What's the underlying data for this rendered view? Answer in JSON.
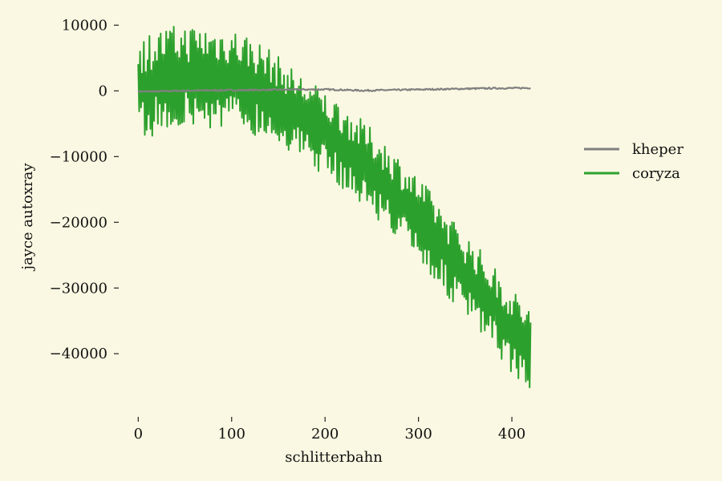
{
  "chart_data": {
    "type": "line",
    "title": "",
    "xlabel": "schlitterbahn",
    "ylabel": "jayce autoxray",
    "xlim": [
      -8,
      430
    ],
    "ylim": [
      -49000,
      12000
    ],
    "x_ticks": [
      0,
      100,
      200,
      300,
      400
    ],
    "x_tick_labels": [
      "0",
      "100",
      "200",
      "300",
      "400"
    ],
    "y_ticks": [
      10000,
      0,
      -10000,
      -20000,
      -30000,
      -40000
    ],
    "y_tick_labels": [
      "10000",
      "0",
      "−10000",
      "−20000",
      "−30000",
      "−40000"
    ],
    "grid": false,
    "legend_position": "right",
    "background": "#faf8e2",
    "series": [
      {
        "name": "kheper",
        "color": "#808080",
        "x": [
          0,
          20,
          40,
          60,
          80,
          100,
          120,
          140,
          160,
          180,
          200,
          220,
          240,
          260,
          280,
          300,
          320,
          340,
          360,
          380,
          400,
          420
        ],
        "y": [
          -100,
          -80,
          0,
          50,
          80,
          100,
          120,
          150,
          180,
          200,
          220,
          150,
          50,
          100,
          150,
          200,
          250,
          300,
          350,
          400,
          420,
          450
        ]
      },
      {
        "name": "coryza",
        "color": "#2ca02c",
        "x": [
          0,
          20,
          40,
          60,
          80,
          100,
          120,
          140,
          160,
          180,
          200,
          220,
          240,
          260,
          280,
          300,
          320,
          340,
          360,
          380,
          400,
          420
        ],
        "y": [
          0,
          1500,
          2000,
          2200,
          2000,
          1800,
          1000,
          -500,
          -2500,
          -4500,
          -6500,
          -8500,
          -11000,
          -13500,
          -16500,
          -19500,
          -23000,
          -26500,
          -29500,
          -33000,
          -36500,
          -39500
        ],
        "amplitude": [
          8000,
          8000,
          8000,
          8000,
          8000,
          8000,
          7500,
          7000,
          6500,
          6500,
          6500,
          6500,
          6500,
          6500,
          6500,
          6500,
          6500,
          6500,
          6500,
          6500,
          6500,
          6500
        ]
      }
    ]
  }
}
